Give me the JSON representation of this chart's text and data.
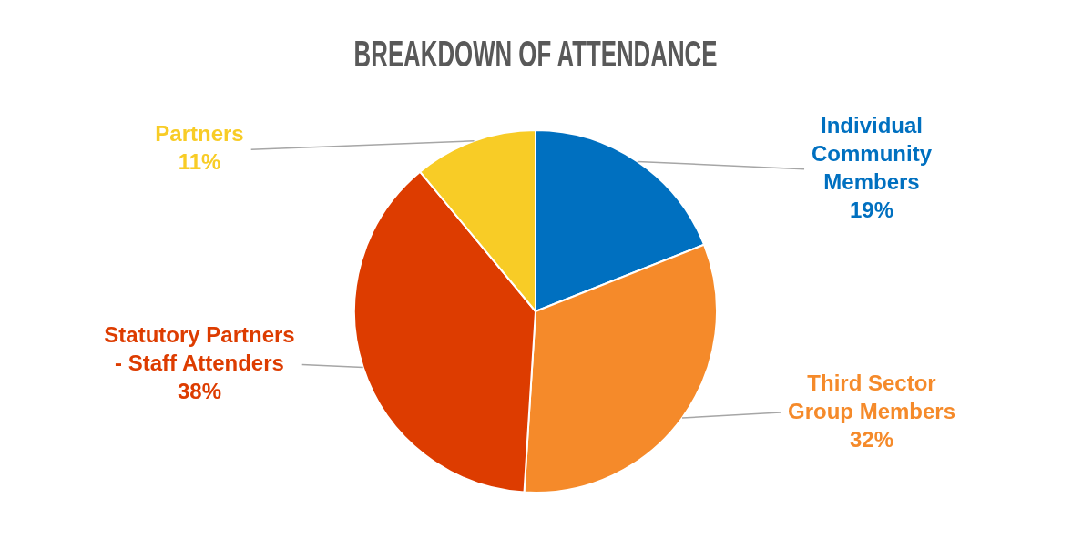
{
  "chart_data": {
    "type": "pie",
    "title": "BREAKDOWN OF ATTENDANCE",
    "categories": [
      "Individual Community Members",
      "Third Sector Group Members",
      "Statutory Partners - Staff Attenders",
      "Partners"
    ],
    "values": [
      19,
      32,
      38,
      11
    ],
    "colors": [
      "#0070c0",
      "#f58a2a",
      "#dd3c00",
      "#f8cc26"
    ],
    "value_labels": [
      "19%",
      "32%",
      "38%",
      "11%"
    ],
    "legend": false
  }
}
